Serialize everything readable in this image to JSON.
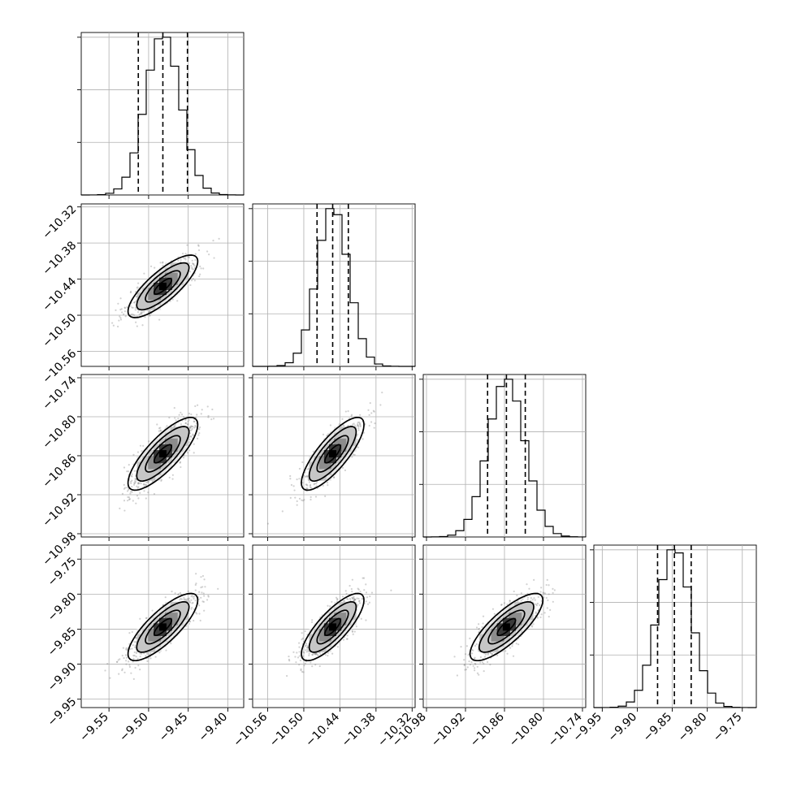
{
  "chart_data": {
    "type": "corner",
    "parameters": [
      {
        "center": -9.482,
        "sd": 0.022,
        "range": [
          -9.585,
          -9.38
        ],
        "ticks": [
          -9.55,
          -9.5,
          -9.45,
          -9.4
        ],
        "tick_labels": [
          "−9.55",
          "−9.50",
          "−9.45",
          "−9.40"
        ],
        "quantiles": [
          -9.513,
          -9.482,
          -9.451
        ]
      },
      {
        "center": -10.452,
        "sd": 0.026,
        "range": [
          -10.585,
          -10.315
        ],
        "ticks": [
          -10.56,
          -10.5,
          -10.44,
          -10.38,
          -10.32
        ],
        "tick_labels": [
          "−10.56",
          "−10.50",
          "−10.44",
          "−10.38",
          "−10.32"
        ],
        "quantiles": [
          -10.478,
          -10.452,
          -10.426
        ]
      },
      {
        "center": -10.857,
        "sd": 0.028,
        "range": [
          -10.985,
          -10.735
        ],
        "ticks": [
          -10.98,
          -10.92,
          -10.86,
          -10.8,
          -10.74
        ],
        "tick_labels": [
          "−10.98",
          "−10.92",
          "−10.86",
          "−10.80",
          "−10.74"
        ],
        "quantiles": [
          -10.886,
          -10.857,
          -10.828
        ]
      },
      {
        "center": -9.847,
        "sd": 0.024,
        "range": [
          -9.962,
          -9.73
        ],
        "ticks": [
          -9.95,
          -9.9,
          -9.85,
          -9.8,
          -9.75
        ],
        "tick_labels": [
          "−9.95",
          "−9.90",
          "−9.85",
          "−9.80",
          "−9.75"
        ],
        "quantiles": [
          -9.871,
          -9.847,
          -9.823
        ]
      }
    ],
    "correlation": 0.8,
    "histogram_bins": 20,
    "grid": true,
    "colors": {
      "samples": "#7a7a7a",
      "contours": "#000000",
      "frame": "#000000",
      "grid": "#b0b0b0"
    }
  }
}
